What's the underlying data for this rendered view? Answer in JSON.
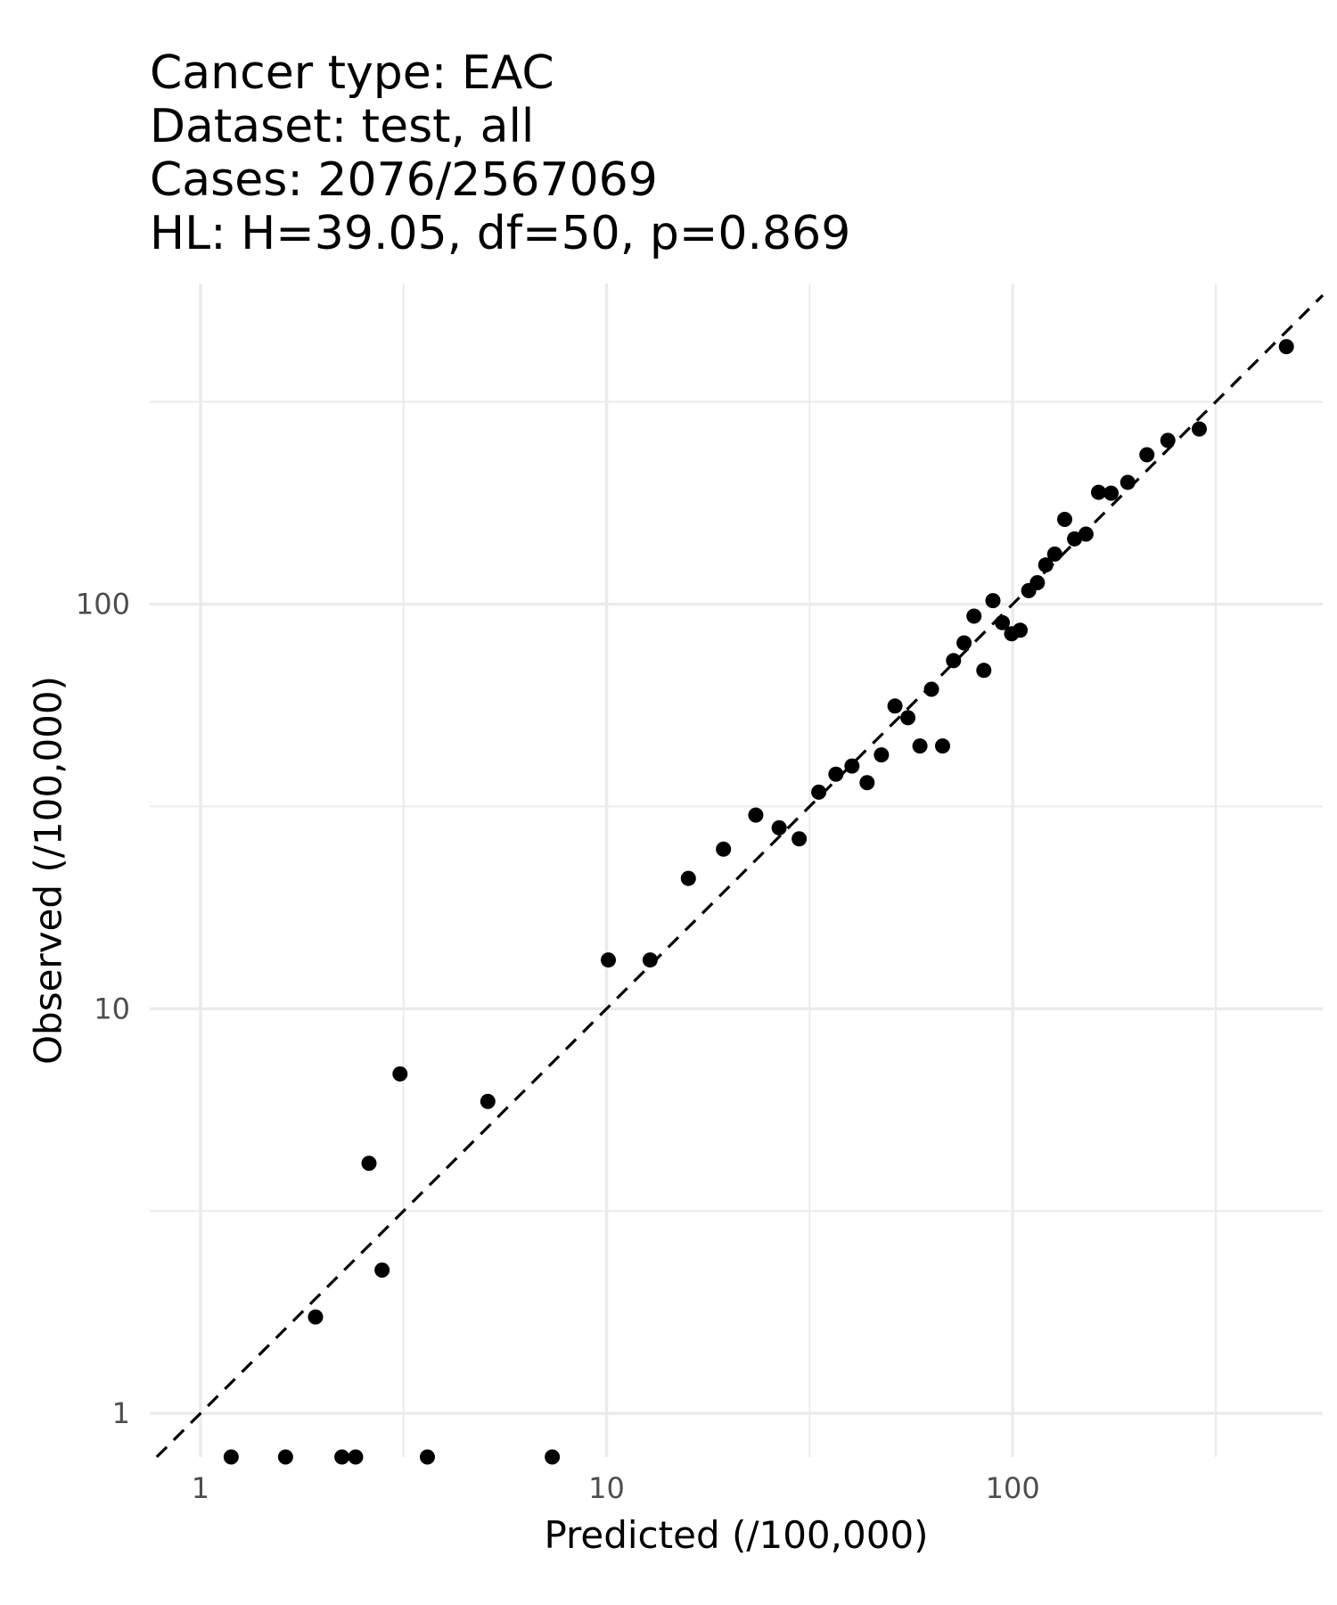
{
  "chart_data": {
    "type": "scatter",
    "title_lines": [
      "Cancer type: EAC",
      "Dataset: test, all",
      "Cases: 2076/2567069",
      "HL: H=39.05, df=50, p=0.869"
    ],
    "xlabel": "Predicted (/100,000)",
    "ylabel": "Observed (/100,000)",
    "x_scale": "log10",
    "y_scale": "log10",
    "xlim": [
      0.75,
      580
    ],
    "ylim": [
      0.78,
      620
    ],
    "x_ticks": [
      1,
      10,
      100
    ],
    "x_tick_labels": [
      "1",
      "10",
      "100"
    ],
    "y_ticks": [
      1,
      10,
      100
    ],
    "y_tick_labels": [
      "1",
      "10",
      "100"
    ],
    "grid": true,
    "reference_line": "y = x",
    "points": [
      {
        "x": 1.19,
        "y": 0.78
      },
      {
        "x": 1.62,
        "y": 0.78
      },
      {
        "x": 2.23,
        "y": 0.78
      },
      {
        "x": 2.41,
        "y": 0.78
      },
      {
        "x": 3.62,
        "y": 0.78
      },
      {
        "x": 7.35,
        "y": 0.78
      },
      {
        "x": 1.92,
        "y": 1.73
      },
      {
        "x": 2.6,
        "y": 4.15
      },
      {
        "x": 2.8,
        "y": 2.26
      },
      {
        "x": 3.1,
        "y": 6.9
      },
      {
        "x": 5.1,
        "y": 5.9
      },
      {
        "x": 10.1,
        "y": 13.2
      },
      {
        "x": 12.8,
        "y": 13.2
      },
      {
        "x": 15.9,
        "y": 21
      },
      {
        "x": 19.4,
        "y": 24.8
      },
      {
        "x": 23.3,
        "y": 30.1
      },
      {
        "x": 26.6,
        "y": 28
      },
      {
        "x": 29.8,
        "y": 26.3
      },
      {
        "x": 33.3,
        "y": 34.3
      },
      {
        "x": 36.7,
        "y": 38
      },
      {
        "x": 40.2,
        "y": 39.8
      },
      {
        "x": 43.8,
        "y": 36.2
      },
      {
        "x": 47.5,
        "y": 42.4
      },
      {
        "x": 51.3,
        "y": 56
      },
      {
        "x": 55.2,
        "y": 52.4
      },
      {
        "x": 59.1,
        "y": 44.6
      },
      {
        "x": 63.1,
        "y": 61.6
      },
      {
        "x": 67.2,
        "y": 44.6
      },
      {
        "x": 71.5,
        "y": 72.5
      },
      {
        "x": 75.9,
        "y": 80.2
      },
      {
        "x": 80.3,
        "y": 93.4
      },
      {
        "x": 84.9,
        "y": 68.6
      },
      {
        "x": 89.4,
        "y": 102
      },
      {
        "x": 94.3,
        "y": 90
      },
      {
        "x": 99.4,
        "y": 84.5
      },
      {
        "x": 104.3,
        "y": 86.2
      },
      {
        "x": 109.5,
        "y": 108
      },
      {
        "x": 115,
        "y": 113
      },
      {
        "x": 120.6,
        "y": 125
      },
      {
        "x": 126.9,
        "y": 133
      },
      {
        "x": 134.3,
        "y": 162
      },
      {
        "x": 142,
        "y": 145
      },
      {
        "x": 151.5,
        "y": 149
      },
      {
        "x": 162.7,
        "y": 189
      },
      {
        "x": 174.7,
        "y": 188
      },
      {
        "x": 192,
        "y": 200
      },
      {
        "x": 214,
        "y": 234
      },
      {
        "x": 241,
        "y": 254
      },
      {
        "x": 288,
        "y": 271
      },
      {
        "x": 472,
        "y": 433
      }
    ]
  }
}
